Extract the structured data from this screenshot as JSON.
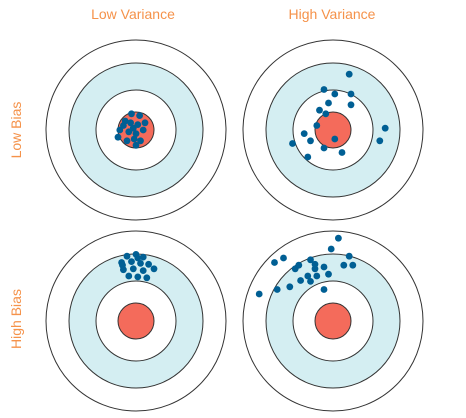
{
  "colors": {
    "label": "#f5924a",
    "ring_stroke": "#333333",
    "outer_fill": "#ffffff",
    "band_fill": "#d4eef2",
    "inner_fill": "#ffffff",
    "bullseye_fill": "#f46b5b",
    "dot_fill": "#005f94"
  },
  "column_labels": {
    "low_variance": "Low Variance",
    "high_variance": "High Variance"
  },
  "row_labels": {
    "low_bias": "Low Bias",
    "high_bias": "High Bias"
  },
  "targets": [
    {
      "name": "low-bias-low-variance",
      "hits": [
        [
          -0.12,
          -0.1
        ],
        [
          -0.05,
          -0.18
        ],
        [
          0.04,
          -0.16
        ],
        [
          -0.18,
          0.0
        ],
        [
          -0.08,
          0.02
        ],
        [
          0.02,
          -0.06
        ],
        [
          0.08,
          0.0
        ],
        [
          -0.02,
          0.1
        ],
        [
          -0.1,
          0.12
        ],
        [
          0.05,
          0.12
        ],
        [
          -0.14,
          -0.05
        ],
        [
          0.0,
          0.04
        ],
        [
          -0.06,
          -0.08
        ],
        [
          0.1,
          -0.08
        ],
        [
          -0.2,
          0.08
        ],
        [
          0.0,
          0.17
        ],
        [
          -0.03,
          -0.02
        ]
      ]
    },
    {
      "name": "low-bias-high-variance",
      "hits": [
        [
          -0.1,
          -0.45
        ],
        [
          0.2,
          -0.4
        ],
        [
          0.2,
          -0.28
        ],
        [
          0.02,
          -0.4
        ],
        [
          -0.05,
          -0.3
        ],
        [
          -0.15,
          -0.22
        ],
        [
          -0.08,
          -0.18
        ],
        [
          -0.18,
          -0.05
        ],
        [
          -0.32,
          0.04
        ],
        [
          -0.45,
          0.15
        ],
        [
          -0.25,
          0.12
        ],
        [
          -0.1,
          0.2
        ],
        [
          -0.28,
          0.3
        ],
        [
          0.02,
          0.1
        ],
        [
          0.1,
          0.25
        ],
        [
          0.58,
          -0.02
        ],
        [
          0.52,
          0.12
        ],
        [
          0.18,
          -0.62
        ]
      ]
    },
    {
      "name": "high-bias-low-variance",
      "hits": [
        [
          -0.1,
          -0.72
        ],
        [
          0.0,
          -0.74
        ],
        [
          0.08,
          -0.71
        ],
        [
          -0.16,
          -0.65
        ],
        [
          -0.05,
          -0.66
        ],
        [
          0.05,
          -0.64
        ],
        [
          0.14,
          -0.63
        ],
        [
          -0.14,
          -0.57
        ],
        [
          -0.03,
          -0.58
        ],
        [
          0.08,
          -0.56
        ],
        [
          0.2,
          -0.58
        ],
        [
          -0.08,
          -0.5
        ],
        [
          0.02,
          -0.49
        ],
        [
          0.12,
          -0.48
        ],
        [
          -0.15,
          -0.62
        ],
        [
          0.02,
          -0.7
        ]
      ]
    },
    {
      "name": "high-bias-high-variance",
      "hits": [
        [
          -0.55,
          -0.7
        ],
        [
          -0.65,
          -0.65
        ],
        [
          0.06,
          -0.92
        ],
        [
          -0.02,
          -0.8
        ],
        [
          0.18,
          -0.72
        ],
        [
          0.12,
          -0.62
        ],
        [
          0.22,
          -0.62
        ],
        [
          -0.42,
          -0.58
        ],
        [
          -0.25,
          -0.68
        ],
        [
          -0.2,
          -0.58
        ],
        [
          -0.28,
          -0.5
        ],
        [
          -0.18,
          -0.5
        ],
        [
          -0.25,
          -0.44
        ],
        [
          -0.1,
          -0.6
        ],
        [
          -0.05,
          -0.52
        ],
        [
          -0.36,
          -0.45
        ],
        [
          -0.48,
          -0.38
        ],
        [
          -0.62,
          -0.35
        ],
        [
          -0.82,
          -0.3
        ],
        [
          -0.1,
          -0.35
        ],
        [
          -0.38,
          -0.62
        ],
        [
          -0.2,
          -0.63
        ]
      ]
    }
  ]
}
